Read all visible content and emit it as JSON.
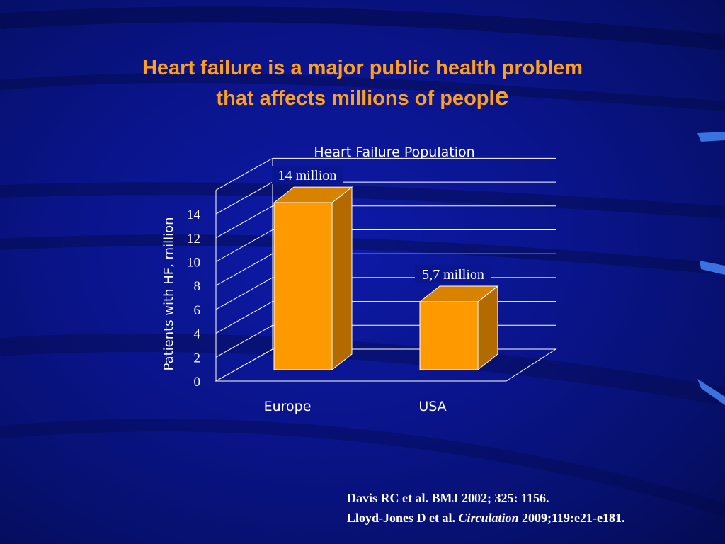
{
  "slide": {
    "title_line1": "Heart failure is a major public health problem",
    "title_line2_main": "that affects millions of peopl",
    "title_line2_end": "e",
    "citation_line1": "Davis RC et al. BMJ 2002; 325: 1156.",
    "citation_line2_pre": "Lloyd-Jones D et al. ",
    "citation_line2_journal": "Circulation",
    "citation_line2_post": " 2009;119:e21-e181."
  },
  "chart_data": {
    "type": "bar",
    "title": "Heart Failure Population",
    "ylabel": "Patients with HF, million",
    "xlabel": "",
    "categories": [
      "Europe",
      "USA"
    ],
    "values": [
      14,
      5.7
    ],
    "data_labels": [
      "14 million",
      "5,7 million"
    ],
    "ylim": [
      0,
      14
    ],
    "yticks": [
      0,
      2,
      4,
      6,
      8,
      10,
      12,
      14
    ],
    "grid": true,
    "style": "3d",
    "bar_color": "#ff9900",
    "bar_side_color": "#b36b00",
    "bar_top_color": "#d98200"
  }
}
